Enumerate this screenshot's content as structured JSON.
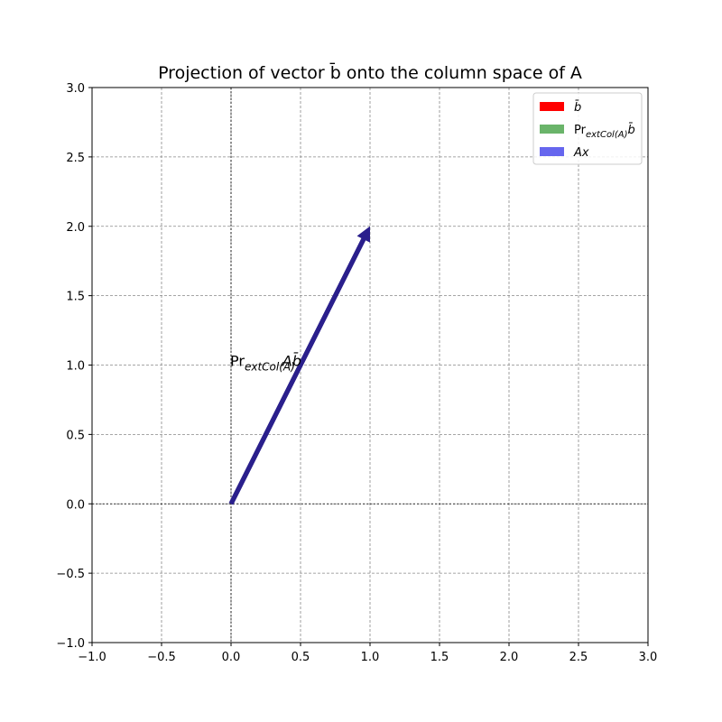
{
  "chart_data": {
    "type": "vector",
    "title": "Projection of vector b̄ onto the column space of A",
    "xlim": [
      -1.0,
      3.0
    ],
    "ylim": [
      -1.0,
      3.0
    ],
    "xticks": [
      "−1.0",
      "−0.5",
      "0.0",
      "0.5",
      "1.0",
      "1.5",
      "2.0",
      "2.5",
      "3.0"
    ],
    "yticks": [
      "−1.0",
      "−0.5",
      "0.0",
      "0.5",
      "1.0",
      "1.5",
      "2.0",
      "2.5",
      "3.0"
    ],
    "grid": true,
    "legend_position": "top-right",
    "vectors": [
      {
        "name": "b̄",
        "from": [
          0,
          0
        ],
        "to": [
          1,
          2
        ],
        "color": "#ff0000"
      },
      {
        "name": "Pr_extCol(A) b̄",
        "from": [
          0,
          0
        ],
        "to": [
          1,
          2
        ],
        "color": "#6ab46a"
      },
      {
        "name": "Ax",
        "from": [
          0,
          0
        ],
        "to": [
          1,
          2
        ],
        "color": "#6666ee"
      }
    ],
    "drawn_color": "#2a1f8c",
    "legend": [
      {
        "label": "b̄",
        "sub": "",
        "color": "#ff0000"
      },
      {
        "label": "Pr",
        "sub": "extCol(A)",
        "tail": "b̄",
        "color": "#6ab46a"
      },
      {
        "label": "Ax",
        "sub": "",
        "color": "#6666ee"
      }
    ],
    "annotations": [
      {
        "text": "Pr",
        "sub": "extCol(A)",
        "tail": "Ab̄",
        "at": [
          0.5,
          1.0
        ]
      }
    ]
  }
}
